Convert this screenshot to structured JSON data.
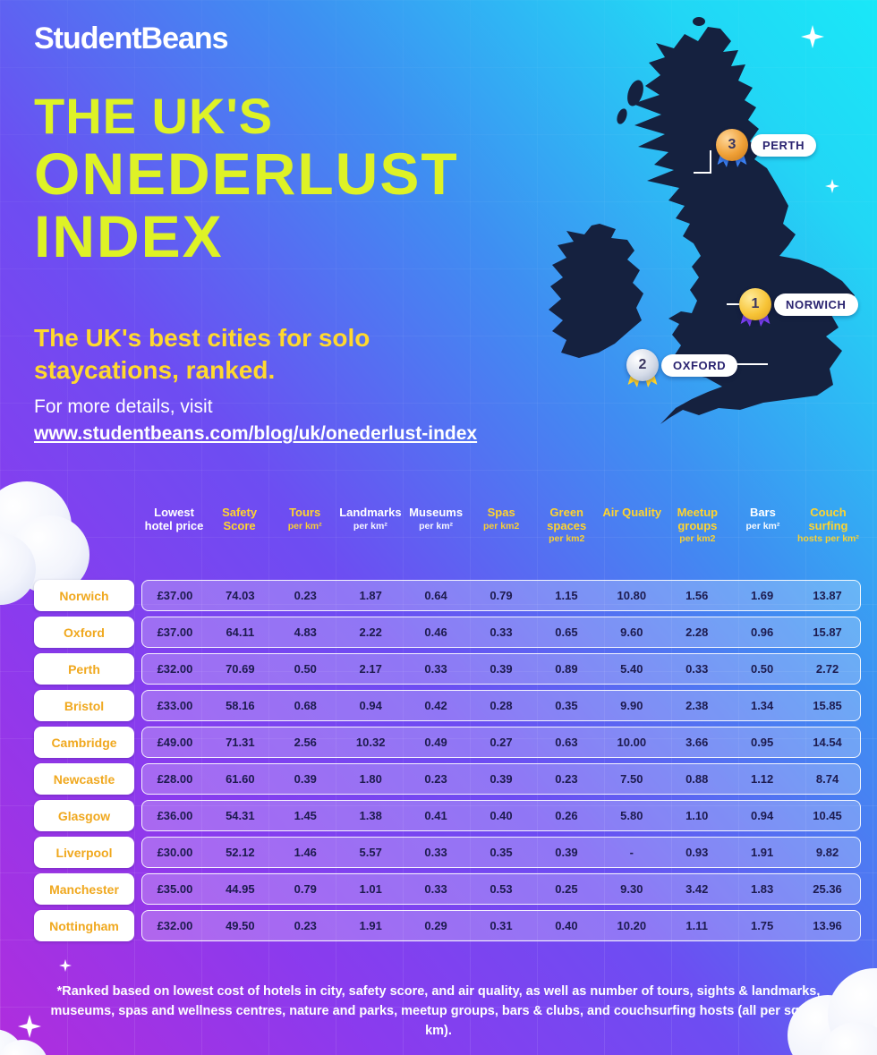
{
  "brand": {
    "logo_text": "StudentBeans"
  },
  "hero": {
    "title_line1": "THE UK'S",
    "title_line2": "ONEDERLUST",
    "title_line3": "INDEX",
    "subtitle": "The UK's best cities for solo staycations, ranked.",
    "details_label": "For more details, visit",
    "details_url": "www.studentbeans.com/blog/uk/onederlust-index"
  },
  "map": {
    "markers": [
      {
        "rank": "1",
        "city": "NORWICH",
        "medal": "gold"
      },
      {
        "rank": "2",
        "city": "OXFORD",
        "medal": "silver"
      },
      {
        "rank": "3",
        "city": "PERTH",
        "medal": "bronze"
      }
    ]
  },
  "chart_data": {
    "type": "table",
    "title": "The UK's Onederlust Index — the UK's best cities for solo staycations, ranked",
    "columns": [
      {
        "label": "Lowest hotel price",
        "sub": "",
        "color": "white"
      },
      {
        "label": "Safety Score",
        "sub": "",
        "color": "yellow"
      },
      {
        "label": "Tours",
        "sub": "per km²",
        "color": "yellow"
      },
      {
        "label": "Landmarks",
        "sub": "per km²",
        "color": "white"
      },
      {
        "label": "Museums",
        "sub": "per km²",
        "color": "white"
      },
      {
        "label": "Spas",
        "sub": "per km2",
        "color": "yellow"
      },
      {
        "label": "Green spaces",
        "sub": "per km2",
        "color": "yellow"
      },
      {
        "label": "Air Quality",
        "sub": "",
        "color": "yellow"
      },
      {
        "label": "Meetup groups",
        "sub": "per km2",
        "color": "yellow"
      },
      {
        "label": "Bars",
        "sub": "per km²",
        "color": "white"
      },
      {
        "label": "Couch surfing",
        "sub": "hosts per km²",
        "color": "yellow"
      }
    ],
    "rows": [
      {
        "city": "Norwich",
        "values": [
          "£37.00",
          "74.03",
          "0.23",
          "1.87",
          "0.64",
          "0.79",
          "1.15",
          "10.80",
          "1.56",
          "1.69",
          "13.87"
        ]
      },
      {
        "city": "Oxford",
        "values": [
          "£37.00",
          "64.11",
          "4.83",
          "2.22",
          "0.46",
          "0.33",
          "0.65",
          "9.60",
          "2.28",
          "0.96",
          "15.87"
        ]
      },
      {
        "city": "Perth",
        "values": [
          "£32.00",
          "70.69",
          "0.50",
          "2.17",
          "0.33",
          "0.39",
          "0.89",
          "5.40",
          "0.33",
          "0.50",
          "2.72"
        ]
      },
      {
        "city": "Bristol",
        "values": [
          "£33.00",
          "58.16",
          "0.68",
          "0.94",
          "0.42",
          "0.28",
          "0.35",
          "9.90",
          "2.38",
          "1.34",
          "15.85"
        ]
      },
      {
        "city": "Cambridge",
        "values": [
          "£49.00",
          "71.31",
          "2.56",
          "10.32",
          "0.49",
          "0.27",
          "0.63",
          "10.00",
          "3.66",
          "0.95",
          "14.54"
        ]
      },
      {
        "city": "Newcastle",
        "values": [
          "£28.00",
          "61.60",
          "0.39",
          "1.80",
          "0.23",
          "0.39",
          "0.23",
          "7.50",
          "0.88",
          "1.12",
          "8.74"
        ]
      },
      {
        "city": "Glasgow",
        "values": [
          "£36.00",
          "54.31",
          "1.45",
          "1.38",
          "0.41",
          "0.40",
          "0.26",
          "5.80",
          "1.10",
          "0.94",
          "10.45"
        ]
      },
      {
        "city": "Liverpool",
        "values": [
          "£30.00",
          "52.12",
          "1.46",
          "5.57",
          "0.33",
          "0.35",
          "0.39",
          "-",
          "0.93",
          "1.91",
          "9.82"
        ]
      },
      {
        "city": "Manchester",
        "values": [
          "£35.00",
          "44.95",
          "0.79",
          "1.01",
          "0.33",
          "0.53",
          "0.25",
          "9.30",
          "3.42",
          "1.83",
          "25.36"
        ]
      },
      {
        "city": "Nottingham",
        "values": [
          "£32.00",
          "49.50",
          "0.23",
          "1.91",
          "0.29",
          "0.31",
          "0.40",
          "10.20",
          "1.11",
          "1.75",
          "13.96"
        ]
      }
    ]
  },
  "footnote": "*Ranked based on lowest cost of hotels in city, safety score, and air quality, as well as number of tours, sights & landmarks, museums, spas and wellness centres, nature and parks, meetup groups, bars & clubs, and couchsurfing hosts (all per square km).",
  "colors": {
    "accent_lime": "#def226",
    "accent_yellow": "#ffd42e",
    "map_navy": "#15213f",
    "value_text": "#1d1b4e",
    "city_text": "#f0a81e",
    "bg_purple": "#8a3bee",
    "bg_cyan": "#22d6f5"
  }
}
